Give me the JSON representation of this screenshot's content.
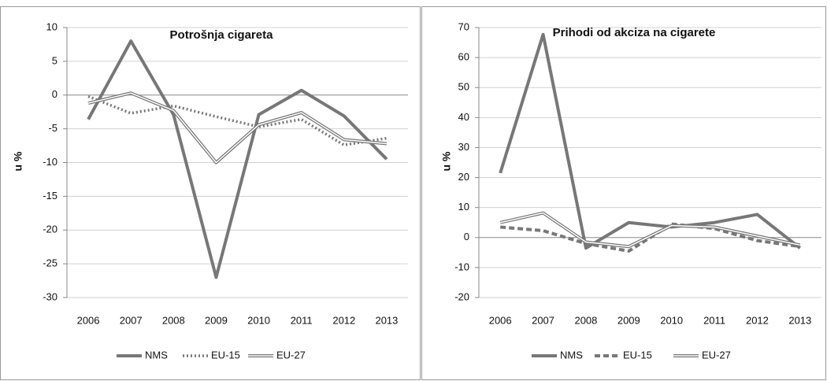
{
  "chart_data": [
    {
      "type": "line",
      "title": "Potrošnja cigareta",
      "y_label": "u %",
      "categories": [
        "2006",
        "2007",
        "2008",
        "2009",
        "2010",
        "2011",
        "2012",
        "2013"
      ],
      "ylim": [
        -30,
        10
      ],
      "yticks": [
        -30,
        -25,
        -20,
        -15,
        -10,
        -5,
        0,
        5,
        10
      ],
      "grid": true,
      "legend": "bottom",
      "series": [
        {
          "name": "NMS",
          "color": "#777777",
          "line_style": "solid",
          "values": [
            -3.6,
            8,
            -2.9,
            -27,
            -2.9,
            0.7,
            -3.1,
            -9.5
          ]
        },
        {
          "name": "EU-15",
          "color": "#777777",
          "line_style": "dotted",
          "values": [
            -0.2,
            -2.7,
            -1.6,
            -3.2,
            -4.7,
            -3.6,
            -7.4,
            -6.4
          ]
        },
        {
          "name": "EU-27",
          "color": "#777777",
          "line_style": "double",
          "values": [
            -1.2,
            0.3,
            -2.3,
            -10,
            -4.4,
            -2.6,
            -6.6,
            -7.2
          ]
        }
      ]
    },
    {
      "type": "line",
      "title": "Prihodi od akciza na cigarete",
      "y_label": "u %",
      "categories": [
        "2006",
        "2007",
        "2008",
        "2009",
        "2010",
        "2011",
        "2012",
        "2013"
      ],
      "ylim": [
        -20,
        70
      ],
      "yticks": [
        -20,
        -10,
        0,
        10,
        20,
        30,
        40,
        50,
        60,
        70
      ],
      "grid": true,
      "legend": "bottom",
      "series": [
        {
          "name": "NMS",
          "color": "#777777",
          "line_style": "solid",
          "values": [
            21.5,
            67.7,
            -3.5,
            5,
            3.5,
            5,
            7.7,
            -3.5
          ]
        },
        {
          "name": "EU-15",
          "color": "#777777",
          "line_style": "dashed",
          "values": [
            3.5,
            2.3,
            -2,
            -4.5,
            4.5,
            3,
            -1,
            -3
          ]
        },
        {
          "name": "EU-27",
          "color": "#777777",
          "line_style": "double",
          "values": [
            5,
            8.2,
            -1.5,
            -3,
            4,
            3.5,
            0.5,
            -2.5
          ]
        }
      ]
    }
  ]
}
